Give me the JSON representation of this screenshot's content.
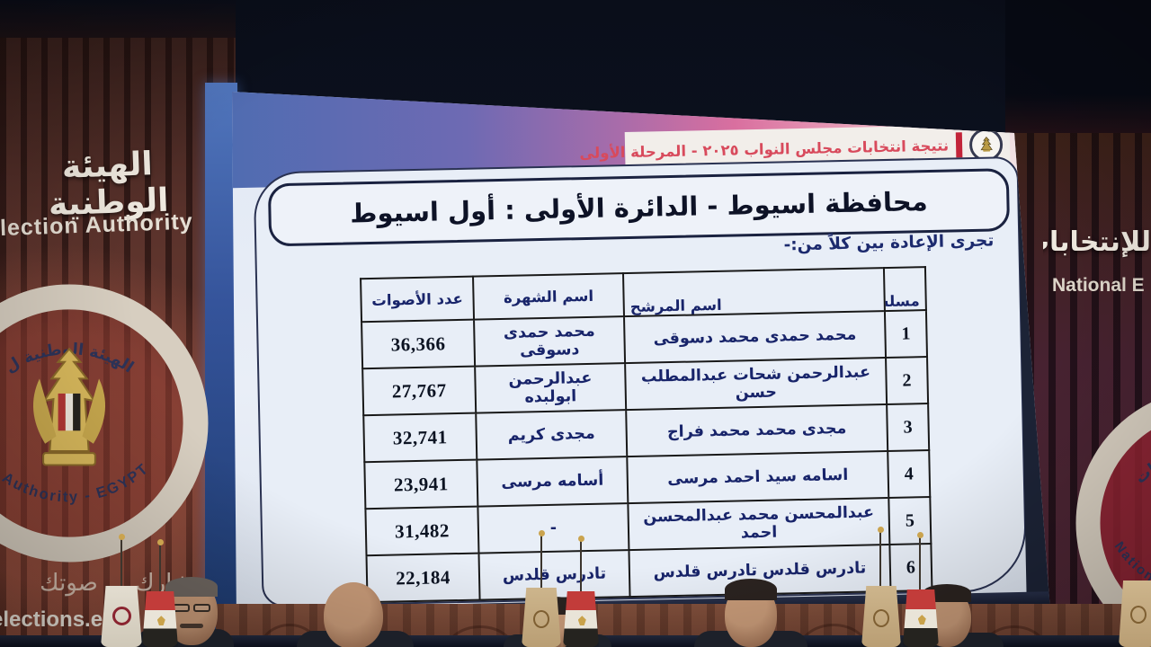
{
  "slide": {
    "event_bar": "نتيجة انتخابات مجلس النواب ٢٠٢٥ - المرحلة الأولى",
    "title": "محافظة اسيوط - الدائرة الأولى : أول اسيوط",
    "subtitle": "تجرى الإعادة بين كلاً من:-",
    "table": {
      "headers": {
        "serial": "مسلسل",
        "candidate": "اسم المرشح",
        "alias": "اسم الشهرة",
        "votes": "عدد الأصوات"
      },
      "rows": [
        {
          "serial": "1",
          "candidate": "محمد حمدى محمد دسوقى",
          "alias": "محمد حمدى دسوقى",
          "votes": "36,366"
        },
        {
          "serial": "2",
          "candidate": "عبدالرحمن شحات عبدالمطلب حسن",
          "alias": "عبدالرحمن ابولبده",
          "votes": "27,767"
        },
        {
          "serial": "3",
          "candidate": "مجدى محمد محمد فراج",
          "alias": "مجدى كريم",
          "votes": "32,741"
        },
        {
          "serial": "4",
          "candidate": "اسامه سيد احمد مرسى",
          "alias": "أسامه مرسى",
          "votes": "23,941"
        },
        {
          "serial": "5",
          "candidate": "عبدالمحسن محمد عبدالمحسن احمد",
          "alias": "-",
          "votes": "31,482"
        },
        {
          "serial": "6",
          "candidate": "تادرس قلدس تادرس قلدس",
          "alias": "تادرس قلدس",
          "votes": "22,184"
        }
      ]
    }
  },
  "venue": {
    "left_wall": {
      "arabic_sign": "الهيئة الوطنية",
      "latin_sign": "lection Authority",
      "slogan": "شارك ... صوتك",
      "url": "elections.eg"
    },
    "right_wall": {
      "arabic_sign": "للإنتخابات",
      "latin_sign": "National E"
    },
    "left_emblem": {
      "ring_top": "الهيئة الوطنية ل",
      "ring_bottom": "n Authority - EGYPT"
    },
    "right_emblem": {
      "ring_top": "تخابات",
      "ring_bottom": "Nationa"
    }
  },
  "colors": {
    "accent_red": "#d84a5c",
    "separator_red": "#c22439",
    "navy_text": "#18246a",
    "band_blue": "#4e6cb1",
    "band_pink": "#d96f9f",
    "wall_maroon": "#5a322b",
    "screen_bg": "#e8eef7"
  }
}
